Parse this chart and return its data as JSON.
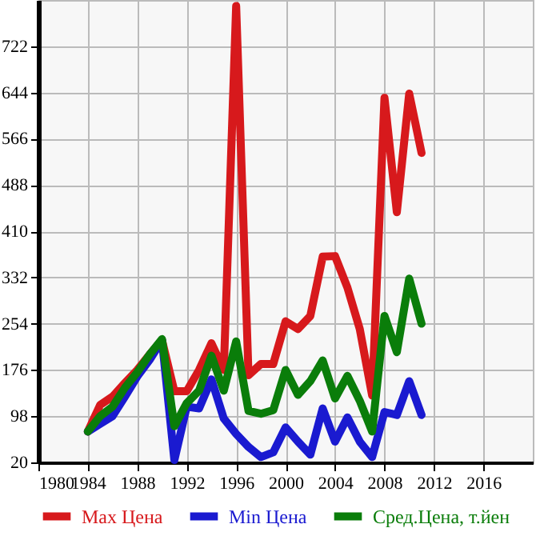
{
  "chart_data": {
    "type": "line",
    "x": [
      1984,
      1985,
      1986,
      1987,
      1988,
      1989,
      1990,
      1991,
      1992,
      1993,
      1994,
      1995,
      1996,
      1997,
      1998,
      1999,
      2000,
      2001,
      2002,
      2003,
      2004,
      2005,
      2006,
      2007,
      2008,
      2009,
      2010,
      2011
    ],
    "series": [
      {
        "name": "Max Цена",
        "color": "#d7191c",
        "values": [
          72,
          117,
          131,
          154,
          176,
          202,
          226,
          140,
          140,
          176,
          221,
          176,
          790,
          167,
          186,
          186,
          258,
          245,
          267,
          367,
          368,
          315,
          245,
          133,
          635,
          442,
          642,
          542
        ]
      },
      {
        "name": "Min Цена",
        "color": "#1a1ad0",
        "values": [
          72,
          85,
          98,
          131,
          165,
          193,
          226,
          24,
          114,
          111,
          160,
          94,
          68,
          46,
          29,
          37,
          79,
          55,
          33,
          111,
          55,
          96,
          55,
          29,
          105,
          100,
          157,
          100
        ]
      },
      {
        "name": "Сред.Цена, т.йен",
        "color": "#0a7d0a",
        "values": [
          72,
          98,
          114,
          146,
          172,
          202,
          228,
          81,
          120,
          141,
          200,
          141,
          224,
          107,
          102,
          108,
          176,
          134,
          157,
          192,
          128,
          166,
          124,
          72,
          267,
          206,
          330,
          254
        ]
      }
    ],
    "xlim": [
      1980,
      2020
    ],
    "xticks": [
      1980,
      1984,
      1988,
      1992,
      1996,
      2000,
      2004,
      2008,
      2012,
      2016
    ],
    "ylim": [
      20,
      800
    ],
    "yticks": [
      20,
      98,
      176,
      254,
      332,
      410,
      488,
      566,
      644,
      722
    ],
    "grid": true,
    "legend": "bottom",
    "marker": "none",
    "line_style": "solid"
  }
}
